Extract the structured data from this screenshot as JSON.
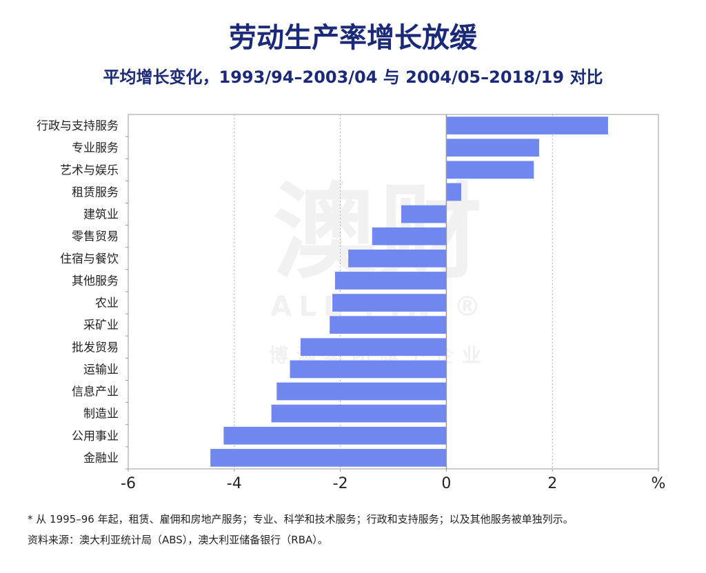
{
  "chart_data": {
    "type": "bar",
    "orientation": "horizontal",
    "title": "劳动生产率增长放缓",
    "subtitle": "平均增长变化，1993/94–2003/04 与 2004/05–2018/19 对比",
    "xlabel": "%",
    "ylabel": "",
    "xlim": [
      -6,
      4
    ],
    "xticks": [
      "-6",
      "-4",
      "-2",
      "0",
      "2",
      "%"
    ],
    "grid": "vertical dotted",
    "bar_color": "#6f87ef",
    "categories": [
      "行政与支持服务",
      "专业服务",
      "艺术与娱乐",
      "租赁服务",
      "建筑业",
      "零售贸易",
      "住宿与餐饮",
      "其他服务",
      "农业",
      "采矿业",
      "批发贸易",
      "运输业",
      "信息产业",
      "制造业",
      "公用事业",
      "金融业"
    ],
    "values": [
      3.05,
      1.75,
      1.65,
      0.28,
      -0.85,
      -1.4,
      -1.85,
      -2.1,
      -2.15,
      -2.2,
      -2.75,
      -2.95,
      -3.2,
      -3.3,
      -4.2,
      -4.45
    ]
  },
  "watermark": {
    "main": "澳财",
    "sub": "ALL FIN ®",
    "tag": "博满集团旗下企业"
  },
  "footnotes": {
    "note": "* 从 1995–96 年起，租赁、雇佣和房地产服务；专业、科学和技术服务；行政和支持服务；以及其他服务被单独列示。",
    "source": "资料来源：澳大利亚统计局（ABS），澳大利亚储备银行（RBA）。"
  }
}
